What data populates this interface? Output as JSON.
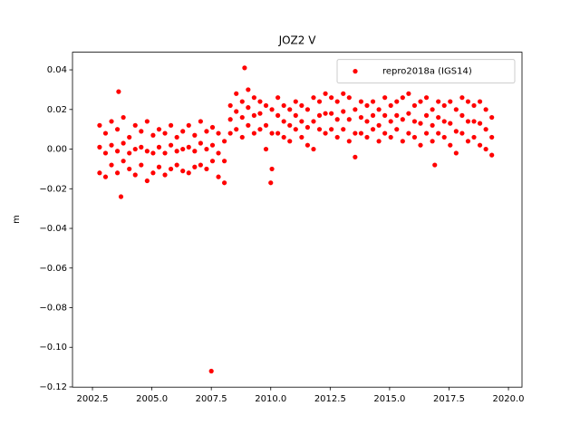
{
  "chart_data": {
    "type": "scatter",
    "title": "JOZ2 V",
    "y_label": "m",
    "xlim": [
      2001.66,
      2020.57
    ],
    "ylim": [
      -0.1201,
      0.0489
    ],
    "xticks": [
      2002.5,
      {
        "value": 2005,
        "label": "2005.0"
      },
      2007.5,
      {
        "value": 2010,
        "label": "2010.0"
      },
      2012.5,
      {
        "value": 2015,
        "label": "2015.0"
      },
      2017.5,
      {
        "value": 2020,
        "label": "2020.0"
      }
    ],
    "yticks": [
      {
        "value": -0.12,
        "label": "−0.12"
      },
      {
        "value": -0.1,
        "label": "−0.10"
      },
      {
        "value": -0.08,
        "label": "−0.08"
      },
      {
        "value": -0.06,
        "label": "−0.06"
      },
      {
        "value": -0.04,
        "label": "−0.04"
      },
      {
        "value": -0.02,
        "label": "−0.02"
      },
      {
        "value": 0,
        "label": "0.00"
      },
      0.02,
      0.04
    ],
    "legend": "upper right",
    "grid": false,
    "x": [
      2002.8,
      2002.8,
      2002.8,
      2003.05,
      2003.05,
      2003.05,
      2003.3,
      2003.3,
      2003.3,
      2003.55,
      2003.55,
      2003.55,
      2003.8,
      2003.8,
      2003.8,
      2004.05,
      2004.05,
      2004.05,
      2004.3,
      2004.3,
      2004.3,
      2004.55,
      2004.55,
      2004.55,
      2004.8,
      2004.8,
      2004.8,
      2005.05,
      2005.05,
      2005.05,
      2005.3,
      2005.3,
      2005.3,
      2005.55,
      2005.55,
      2005.55,
      2005.8,
      2005.8,
      2005.8,
      2006.05,
      2006.05,
      2006.05,
      2006.3,
      2006.3,
      2006.3,
      2006.55,
      2006.55,
      2006.55,
      2006.8,
      2006.8,
      2006.8,
      2007.05,
      2007.05,
      2007.05,
      2007.3,
      2007.3,
      2007.3,
      2007.55,
      2007.55,
      2007.55,
      2007.8,
      2007.8,
      2007.8,
      2008.05,
      2008.05,
      2008.05,
      2008.3,
      2008.3,
      2008.3,
      2008.55,
      2008.55,
      2008.55,
      2008.8,
      2008.8,
      2008.8,
      2009.05,
      2009.05,
      2009.05,
      2009.3,
      2009.3,
      2009.3,
      2009.55,
      2009.55,
      2009.55,
      2009.8,
      2009.8,
      2009.8,
      2010.05,
      2010.05,
      2010.05,
      2010.3,
      2010.3,
      2010.3,
      2010.55,
      2010.55,
      2010.55,
      2010.8,
      2010.8,
      2010.8,
      2011.05,
      2011.05,
      2011.05,
      2011.3,
      2011.3,
      2011.3,
      2011.55,
      2011.55,
      2011.55,
      2011.8,
      2011.8,
      2011.8,
      2012.05,
      2012.05,
      2012.05,
      2012.3,
      2012.3,
      2012.3,
      2012.55,
      2012.55,
      2012.55,
      2012.8,
      2012.8,
      2012.8,
      2013.05,
      2013.05,
      2013.05,
      2013.3,
      2013.3,
      2013.3,
      2013.55,
      2013.55,
      2013.55,
      2013.8,
      2013.8,
      2013.8,
      2014.05,
      2014.05,
      2014.05,
      2014.3,
      2014.3,
      2014.3,
      2014.55,
      2014.55,
      2014.55,
      2014.8,
      2014.8,
      2014.8,
      2015.05,
      2015.05,
      2015.05,
      2015.3,
      2015.3,
      2015.3,
      2015.55,
      2015.55,
      2015.55,
      2015.8,
      2015.8,
      2015.8,
      2016.05,
      2016.05,
      2016.05,
      2016.3,
      2016.3,
      2016.3,
      2016.55,
      2016.55,
      2016.55,
      2016.8,
      2016.8,
      2016.8,
      2017.05,
      2017.05,
      2017.05,
      2017.3,
      2017.3,
      2017.3,
      2017.55,
      2017.55,
      2017.55,
      2017.8,
      2017.8,
      2017.8,
      2018.05,
      2018.05,
      2018.05,
      2018.3,
      2018.3,
      2018.3,
      2018.55,
      2018.55,
      2018.55,
      2018.8,
      2018.8,
      2018.8,
      2019.05,
      2019.05,
      2019.05,
      2019.3,
      2019.3,
      2019.3,
      2007.5,
      2008.9,
      2003.6,
      2003.7,
      2010.0,
      2016.9
    ],
    "series": [
      {
        "name": "repro2018a (IGS14)",
        "color": "#ff0000",
        "values": [
          0.012,
          0.001,
          -0.012,
          0.008,
          -0.002,
          -0.014,
          0.014,
          0.002,
          -0.008,
          0.01,
          -0.001,
          -0.012,
          0.016,
          0.003,
          -0.006,
          0.006,
          -0.002,
          -0.01,
          0.012,
          0.0,
          -0.013,
          0.009,
          0.001,
          -0.008,
          0.014,
          -0.001,
          -0.016,
          0.007,
          -0.002,
          -0.012,
          0.01,
          0.001,
          -0.009,
          0.008,
          -0.002,
          -0.013,
          0.012,
          0.002,
          -0.01,
          0.006,
          -0.001,
          -0.008,
          0.009,
          0.0,
          -0.011,
          0.012,
          0.001,
          -0.012,
          0.007,
          -0.001,
          -0.009,
          0.014,
          0.003,
          -0.008,
          0.009,
          0.0,
          -0.01,
          0.011,
          0.002,
          -0.006,
          0.008,
          -0.002,
          -0.014,
          0.004,
          -0.006,
          -0.017,
          0.022,
          0.015,
          0.008,
          0.028,
          0.019,
          0.01,
          0.024,
          0.016,
          0.006,
          0.03,
          0.021,
          0.012,
          0.026,
          0.017,
          0.008,
          0.024,
          0.018,
          0.01,
          0.022,
          0.012,
          0.0,
          0.02,
          0.008,
          -0.01,
          0.026,
          0.017,
          0.008,
          0.022,
          0.014,
          0.006,
          0.02,
          0.012,
          0.004,
          0.024,
          0.017,
          0.01,
          0.022,
          0.014,
          0.006,
          0.02,
          0.011,
          0.002,
          0.026,
          0.014,
          0.0,
          0.024,
          0.017,
          0.01,
          0.028,
          0.018,
          0.008,
          0.026,
          0.018,
          0.01,
          0.024,
          0.015,
          0.006,
          0.028,
          0.019,
          0.01,
          0.026,
          0.015,
          0.004,
          0.02,
          0.008,
          -0.004,
          0.024,
          0.016,
          0.008,
          0.022,
          0.014,
          0.006,
          0.024,
          0.017,
          0.01,
          0.02,
          0.012,
          0.004,
          0.026,
          0.017,
          0.008,
          0.022,
          0.014,
          0.006,
          0.024,
          0.017,
          0.01,
          0.026,
          0.015,
          0.004,
          0.028,
          0.018,
          0.008,
          0.022,
          0.014,
          0.006,
          0.024,
          0.013,
          0.002,
          0.026,
          0.017,
          0.008,
          0.02,
          0.012,
          0.004,
          0.024,
          0.016,
          0.008,
          0.022,
          0.014,
          0.006,
          0.024,
          0.013,
          0.002,
          0.02,
          0.009,
          -0.002,
          0.026,
          0.017,
          0.008,
          0.024,
          0.014,
          0.004,
          0.022,
          0.014,
          0.006,
          0.024,
          0.013,
          0.002,
          0.02,
          0.01,
          0.0,
          0.016,
          0.006,
          -0.003,
          -0.112,
          0.041,
          0.029,
          -0.024,
          -0.017,
          -0.008
        ]
      }
    ]
  }
}
